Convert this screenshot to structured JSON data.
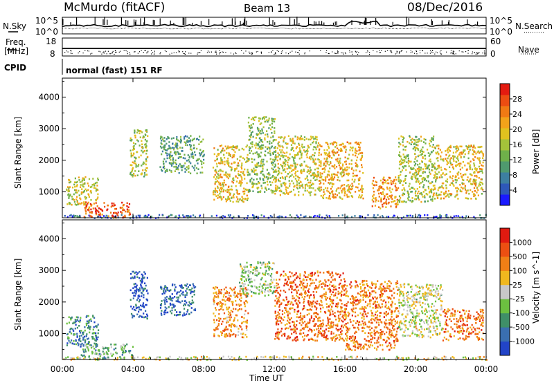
{
  "header": {
    "station": "McMurdo (fitACF)",
    "beam": "Beam 13",
    "date": "08/Dec/2016"
  },
  "noise_panel": {
    "left_label": "N.Sky",
    "right_label": "N.Search",
    "left_ticks": [
      "10^5",
      "10^0"
    ],
    "right_ticks": [
      "10^5",
      "10^0"
    ]
  },
  "freq_panel": {
    "left_label_1": "Freq.",
    "left_label_2": "[MHz]",
    "right_label": "Nave",
    "left_ticks": [
      "18",
      "8"
    ],
    "right_ticks": [
      "60",
      "0"
    ]
  },
  "cpid": {
    "label": "CPID",
    "mode": "normal (fast) 151 RF"
  },
  "chart_data": [
    {
      "type": "heatmap",
      "name": "power",
      "ylabel": "Slant Range [km]",
      "ylim": [
        180,
        4600
      ],
      "yticks": [
        "1000",
        "2000",
        "3000",
        "4000"
      ],
      "xlim": [
        0,
        24
      ],
      "xticks": [
        "00:00",
        "04:00",
        "08:00",
        "12:00",
        "16:00",
        "20:00",
        "00:00"
      ],
      "colorbar": {
        "label": "Power [dB]",
        "ticks": [
          "4",
          "8",
          "12",
          "16",
          "20",
          "24",
          "28"
        ],
        "colors": [
          "#1a1aff",
          "#2e58b8",
          "#3d7fa0",
          "#4f9a6e",
          "#6fb04a",
          "#a4c23a",
          "#e0c21f",
          "#f2a31a",
          "#f07a14",
          "#ec4d12",
          "#e41b10"
        ]
      },
      "echo_regions": [
        {
          "t0": 0.0,
          "t1": 24.0,
          "r0": 190,
          "r1": 300,
          "level": 0.15
        },
        {
          "t0": 1.2,
          "t1": 3.8,
          "r0": 200,
          "r1": 700,
          "level": 0.85
        },
        {
          "t0": 0.2,
          "t1": 2.0,
          "r0": 600,
          "r1": 1500,
          "level": 0.55
        },
        {
          "t0": 3.8,
          "t1": 4.8,
          "r0": 1500,
          "r1": 3000,
          "level": 0.5
        },
        {
          "t0": 5.5,
          "t1": 8.0,
          "r0": 1600,
          "r1": 2800,
          "level": 0.35
        },
        {
          "t0": 8.5,
          "t1": 10.5,
          "r0": 700,
          "r1": 2500,
          "level": 0.6
        },
        {
          "t0": 10.5,
          "t1": 12.0,
          "r0": 1000,
          "r1": 3400,
          "level": 0.45
        },
        {
          "t0": 12.0,
          "t1": 14.5,
          "r0": 900,
          "r1": 2800,
          "level": 0.55
        },
        {
          "t0": 14.5,
          "t1": 17.0,
          "r0": 800,
          "r1": 2600,
          "level": 0.65
        },
        {
          "t0": 17.5,
          "t1": 19.0,
          "r0": 500,
          "r1": 1500,
          "level": 0.75
        },
        {
          "t0": 19.0,
          "t1": 21.0,
          "r0": 700,
          "r1": 2800,
          "level": 0.5
        },
        {
          "t0": 21.0,
          "t1": 23.8,
          "r0": 800,
          "r1": 2500,
          "level": 0.6
        }
      ]
    },
    {
      "type": "heatmap",
      "name": "velocity",
      "ylabel": "Slant Range [km]",
      "ylim": [
        180,
        4600
      ],
      "yticks": [
        "1000",
        "2000",
        "3000",
        "4000"
      ],
      "xlim": [
        0,
        24
      ],
      "xticks": [
        "00:00",
        "04:00",
        "08:00",
        "12:00",
        "16:00",
        "20:00",
        "00:00"
      ],
      "xlabel": "Time UT",
      "colorbar": {
        "label": "Velocity [m s^-1]",
        "ticks": [
          "1000",
          "500",
          "100",
          "25",
          "-25",
          "-100",
          "-500",
          "-1000"
        ],
        "colors": [
          "#2244c8",
          "#3a6fb0",
          "#3f8f68",
          "#6cc040",
          "#c8c8c8",
          "#f0b81e",
          "#f07f16",
          "#ec4f12",
          "#e01a10"
        ]
      },
      "echo_regions": [
        {
          "t0": 0.0,
          "t1": 24.0,
          "r0": 190,
          "r1": 300,
          "level": 0.55
        },
        {
          "t0": 1.0,
          "t1": 4.0,
          "r0": 200,
          "r1": 700,
          "level": 0.35
        },
        {
          "t0": 0.2,
          "t1": 2.0,
          "r0": 600,
          "r1": 1600,
          "level": 0.25
        },
        {
          "t0": 3.8,
          "t1": 4.8,
          "r0": 1500,
          "r1": 3000,
          "level": 0.1
        },
        {
          "t0": 5.5,
          "t1": 7.5,
          "r0": 1600,
          "r1": 2600,
          "level": 0.15
        },
        {
          "t0": 8.5,
          "t1": 10.5,
          "r0": 900,
          "r1": 2500,
          "level": 0.7
        },
        {
          "t0": 10.0,
          "t1": 12.0,
          "r0": 2200,
          "r1": 3300,
          "level": 0.45
        },
        {
          "t0": 12.0,
          "t1": 16.0,
          "r0": 800,
          "r1": 3000,
          "level": 0.78
        },
        {
          "t0": 16.0,
          "t1": 19.0,
          "r0": 500,
          "r1": 2700,
          "level": 0.75
        },
        {
          "t0": 19.0,
          "t1": 21.5,
          "r0": 900,
          "r1": 2600,
          "level": 0.5
        },
        {
          "t0": 21.5,
          "t1": 23.8,
          "r0": 800,
          "r1": 1800,
          "level": 0.76
        }
      ]
    }
  ]
}
